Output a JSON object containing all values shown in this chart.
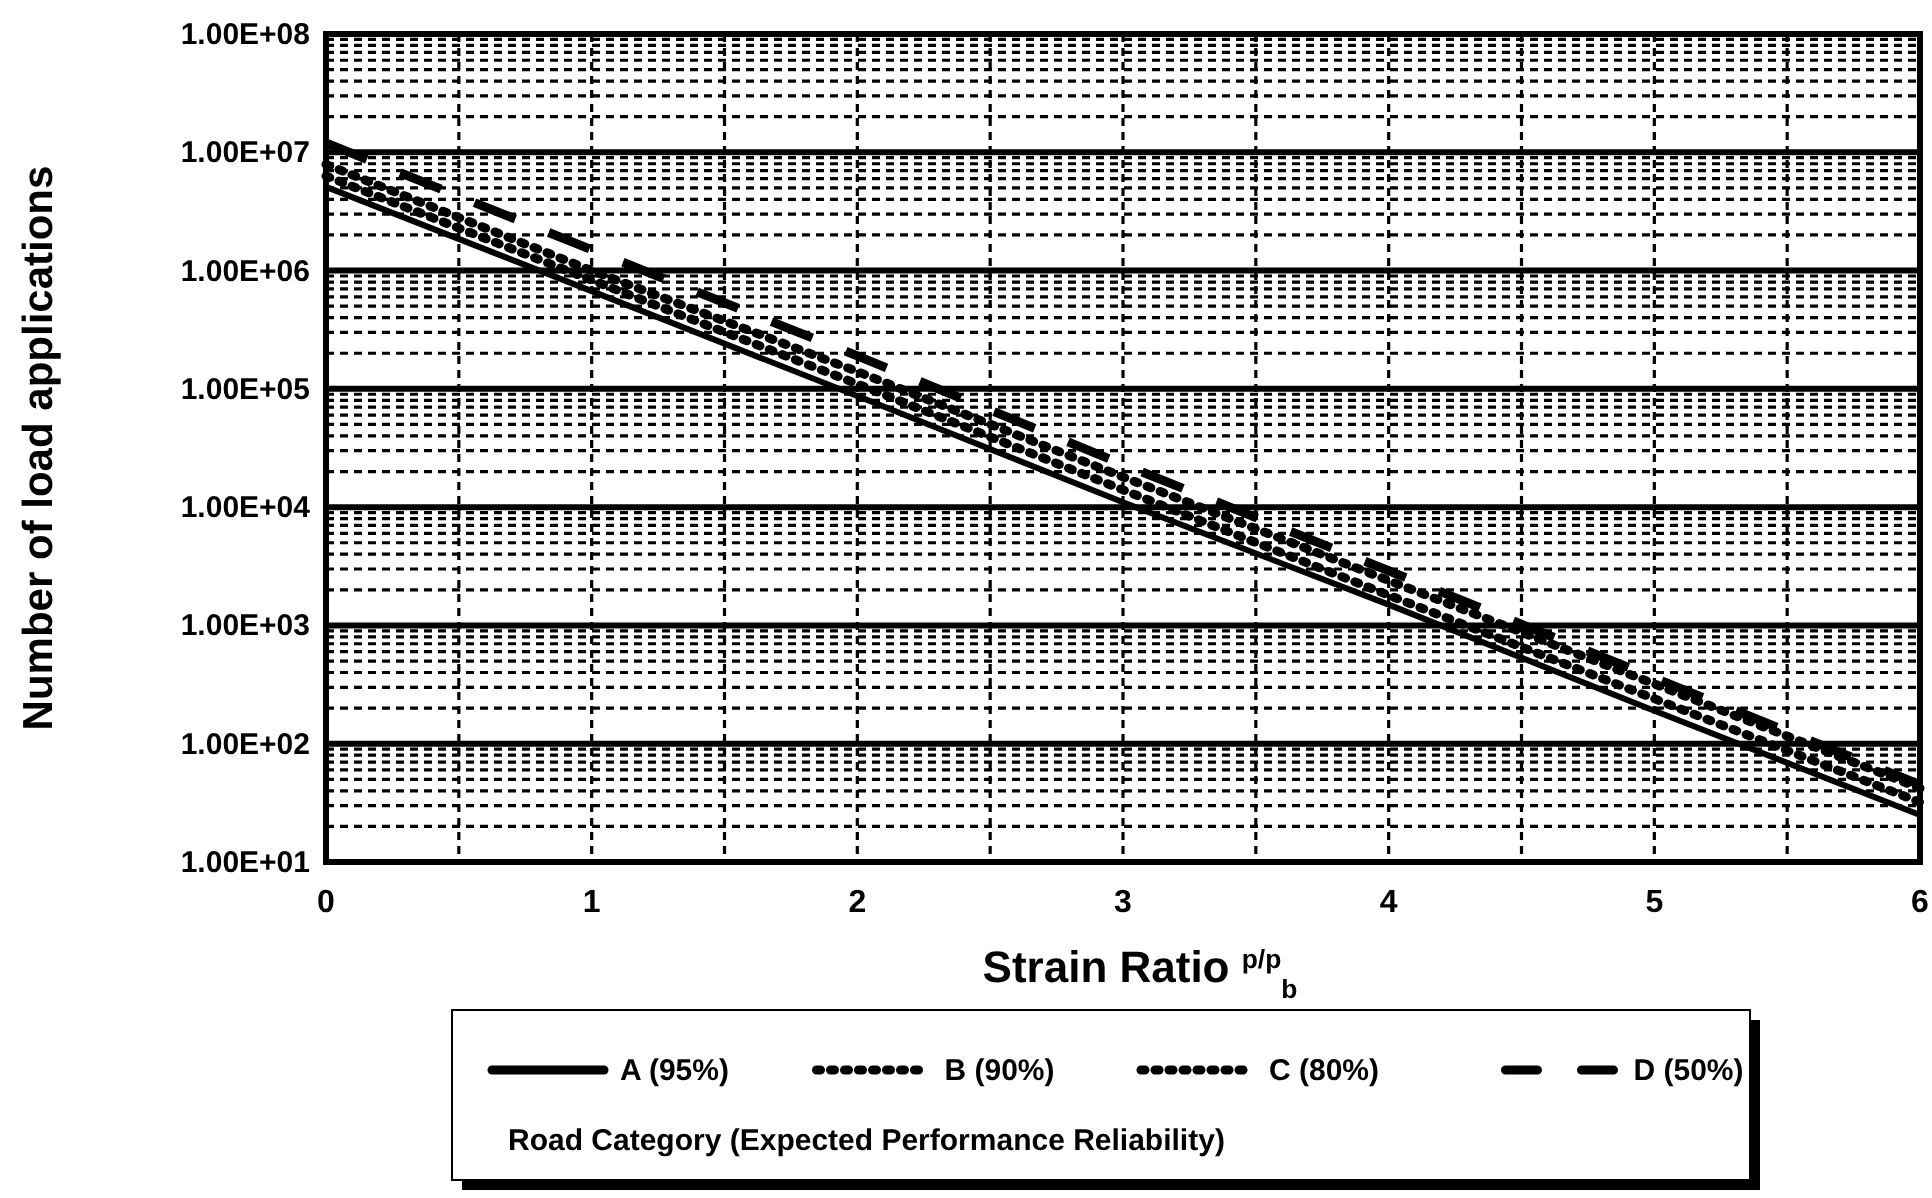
{
  "chart_data": {
    "type": "line",
    "xlabel": "Strain Ratio $^{p/p}$$_{b}$",
    "ylabel": "Number of load applications",
    "legend_title": "Road Category (Expected Performance Reliability)",
    "x": [
      0,
      1,
      2,
      3,
      4,
      5,
      6
    ],
    "series": [
      {
        "name": "A (95%)",
        "color": "#000000",
        "line_style": "solid",
        "values": [
          5100000,
          670000,
          87000,
          11000,
          1500,
          190,
          25
        ]
      },
      {
        "name": "B (90%)",
        "color": "#000000",
        "line_style": "dotted",
        "values": [
          6300000,
          830000,
          110000,
          14000,
          1800,
          240,
          32
        ]
      },
      {
        "name": "C (80%)",
        "color": "#000000",
        "line_style": "dotted",
        "values": [
          7900000,
          1000000,
          140000,
          18000,
          2400,
          320,
          42
        ]
      },
      {
        "name": "D (50%)",
        "color": "#000000",
        "line_style": "dashed",
        "values": [
          12000000,
          1500000,
          190000,
          23000,
          2900,
          360,
          45
        ]
      }
    ],
    "xlim": [
      0,
      6
    ],
    "xticks": [
      0,
      {
        "value": 0.5,
        "label": null
      },
      1,
      {
        "value": 1.5,
        "label": null
      },
      2,
      {
        "value": 2.5,
        "label": null
      },
      3,
      {
        "value": 3.5,
        "label": null
      },
      4,
      {
        "value": 4.5,
        "label": null
      },
      5,
      {
        "value": 5.5,
        "label": null
      },
      6
    ],
    "ylim": [
      10,
      100000000
    ],
    "log": true,
    "yticks": [
      {
        "value": 10,
        "label": "1.00E+01"
      },
      {
        "value": 100,
        "label": "1.00E+02"
      },
      {
        "value": 1000,
        "label": "1.00E+03"
      },
      {
        "value": 10000,
        "label": "1.00E+04"
      },
      {
        "value": 100000,
        "label": "1.00E+05"
      },
      {
        "value": 1000000,
        "label": "1.00E+06"
      },
      {
        "value": 10000000,
        "label": "1.00E+07"
      },
      {
        "value": 100000000,
        "label": "1.00E+08"
      }
    ],
    "grid": true,
    "legend": "bottom",
    "marker": "none"
  }
}
